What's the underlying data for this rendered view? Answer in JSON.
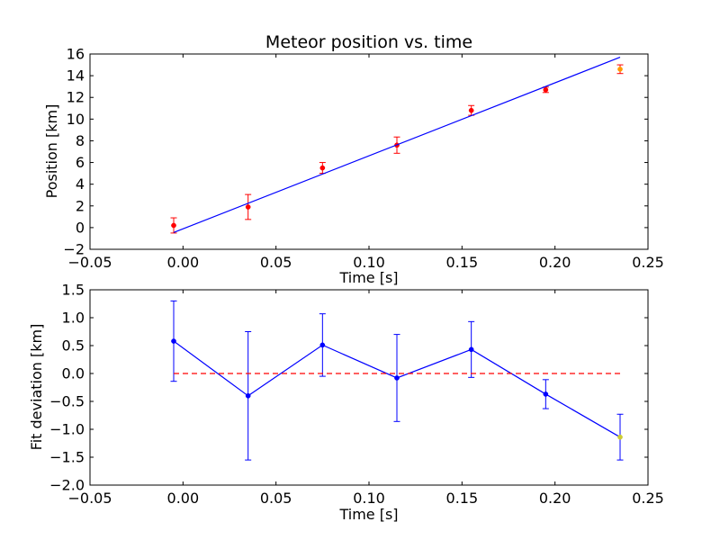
{
  "chart_data": [
    {
      "type": "scatter",
      "title": "Meteor position vs. time",
      "xlabel": "Time [s]",
      "ylabel": "Position [km]",
      "xlim": [
        -0.05,
        0.25
      ],
      "ylim": [
        -2,
        16
      ],
      "xticks": [
        "−0.05",
        "0.00",
        "0.05",
        "0.10",
        "0.15",
        "0.20",
        "0.25"
      ],
      "yticks": [
        "−2",
        "0",
        "2",
        "4",
        "6",
        "8",
        "10",
        "12",
        "14",
        "16"
      ],
      "grid": false,
      "series": [
        {
          "style": "points-with-errorbars",
          "color": "#ff0000",
          "errorbar_color": "#ff0000",
          "x": [
            -0.005,
            0.035,
            0.075,
            0.115,
            0.155,
            0.195
          ],
          "y": [
            0.2,
            1.9,
            5.5,
            7.6,
            10.8,
            12.7
          ],
          "yerr": [
            0.7,
            1.15,
            0.5,
            0.75,
            0.45,
            0.25
          ]
        },
        {
          "style": "points-with-errorbars",
          "color": "#ff9900",
          "errorbar_color": "#ff0000",
          "x": [
            0.235
          ],
          "y": [
            14.6
          ],
          "yerr": [
            0.4
          ]
        },
        {
          "style": "line",
          "color": "#0000ff",
          "x": [
            -0.005,
            0.235
          ],
          "y": [
            -0.45,
            15.7
          ]
        }
      ]
    },
    {
      "type": "line",
      "title": "",
      "xlabel": "Time [s]",
      "ylabel": "Fit deviation [km]",
      "xlim": [
        -0.05,
        0.25
      ],
      "ylim": [
        -2.0,
        1.5
      ],
      "xticks": [
        "−0.05",
        "0.00",
        "0.05",
        "0.10",
        "0.15",
        "0.20",
        "0.25"
      ],
      "yticks": [
        "−2.0",
        "−1.5",
        "−1.0",
        "−0.5",
        "0.0",
        "0.5",
        "1.0",
        "1.5"
      ],
      "grid": false,
      "series": [
        {
          "style": "line-with-errorbars",
          "color": "#0000ff",
          "errorbar_color": "#0000ff",
          "x": [
            -0.005,
            0.035,
            0.075,
            0.115,
            0.155,
            0.195,
            0.235
          ],
          "y": [
            0.58,
            -0.4,
            0.51,
            -0.08,
            0.43,
            -0.37,
            -1.14
          ],
          "yerr": [
            0.72,
            1.15,
            0.56,
            0.78,
            0.5,
            0.26,
            0.41
          ]
        },
        {
          "style": "dashed-line",
          "color": "#ff0000",
          "x": [
            -0.005,
            0.235
          ],
          "y": [
            0.0,
            0.0
          ]
        }
      ]
    }
  ]
}
